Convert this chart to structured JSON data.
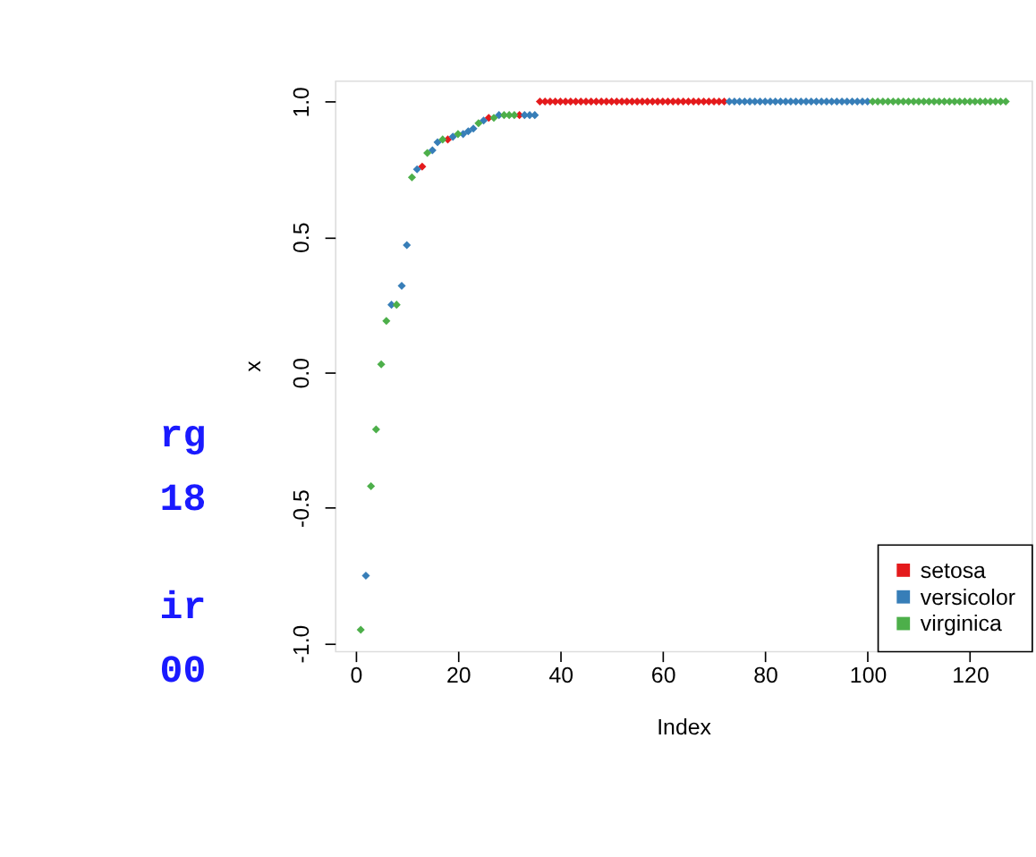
{
  "chart_data": {
    "type": "scatter",
    "xlabel": "Index",
    "ylabel": "x",
    "xlim": [
      -4.04,
      132.04
    ],
    "ylim": [
      -1.028,
      1.078
    ],
    "xticks": [
      0,
      20,
      40,
      60,
      80,
      100,
      120
    ],
    "yticks": [
      {
        "value": -1.0,
        "label": "-1.0"
      },
      -0.5,
      {
        "value": 0,
        "label": "0.0"
      },
      0.5,
      {
        "value": 1.0,
        "label": "1.0"
      }
    ],
    "grid": false,
    "legend": "bottom right",
    "marker": "diamond",
    "annotations": [
      "rg",
      "18",
      "ir",
      "00"
    ],
    "series": [
      {
        "name": "setosa",
        "color": "#e41a1c",
        "x": [
          13,
          18,
          26,
          32,
          36,
          37,
          38,
          39,
          40,
          41,
          42,
          43,
          44,
          45,
          46,
          47,
          48,
          49,
          50,
          51,
          52,
          53,
          54,
          55,
          56,
          57,
          58,
          59,
          60,
          61,
          62,
          63,
          64,
          65,
          66,
          67,
          68,
          69,
          70,
          71,
          72
        ],
        "values": [
          0.76,
          0.86,
          0.94,
          0.95,
          1,
          1,
          1,
          1,
          1,
          1,
          1,
          1,
          1,
          1,
          1,
          1,
          1,
          1,
          1,
          1,
          1,
          1,
          1,
          1,
          1,
          1,
          1,
          1,
          1,
          1,
          1,
          1,
          1,
          1,
          1,
          1,
          1,
          1,
          1,
          1,
          1
        ]
      },
      {
        "name": "versicolor",
        "color": "#377eb8",
        "x": [
          2,
          7,
          9,
          10,
          12,
          15,
          16,
          19,
          21,
          22,
          23,
          25,
          28,
          33,
          34,
          35,
          73,
          74,
          75,
          76,
          77,
          78,
          79,
          80,
          81,
          82,
          83,
          84,
          85,
          86,
          87,
          88,
          89,
          90,
          91,
          92,
          93,
          94,
          95,
          96,
          97,
          98,
          99,
          100
        ],
        "values": [
          -0.75,
          0.25,
          0.32,
          0.47,
          0.75,
          0.82,
          0.85,
          0.87,
          0.88,
          0.89,
          0.9,
          0.93,
          0.95,
          0.95,
          0.95,
          0.95,
          1,
          1,
          1,
          1,
          1,
          1,
          1,
          1,
          1,
          1,
          1,
          1,
          1,
          1,
          1,
          1,
          1,
          1,
          1,
          1,
          1,
          1,
          1,
          1,
          1,
          1,
          1,
          1
        ]
      },
      {
        "name": "virginica",
        "color": "#4daf4a",
        "x": [
          1,
          3,
          4,
          5,
          6,
          8,
          11,
          14,
          17,
          20,
          24,
          27,
          29,
          30,
          31,
          101,
          102,
          103,
          104,
          105,
          106,
          107,
          108,
          109,
          110,
          111,
          112,
          113,
          114,
          115,
          116,
          117,
          118,
          119,
          120,
          121,
          122,
          123,
          124,
          125,
          126,
          127
        ],
        "values": [
          -0.95,
          -0.42,
          -0.21,
          0.03,
          0.19,
          0.25,
          0.72,
          0.81,
          0.86,
          0.88,
          0.92,
          0.94,
          0.95,
          0.95,
          0.95,
          1,
          1,
          1,
          1,
          1,
          1,
          1,
          1,
          1,
          1,
          1,
          1,
          1,
          1,
          1,
          1,
          1,
          1,
          1,
          1,
          1,
          1,
          1,
          1,
          1,
          1,
          1
        ]
      }
    ]
  }
}
